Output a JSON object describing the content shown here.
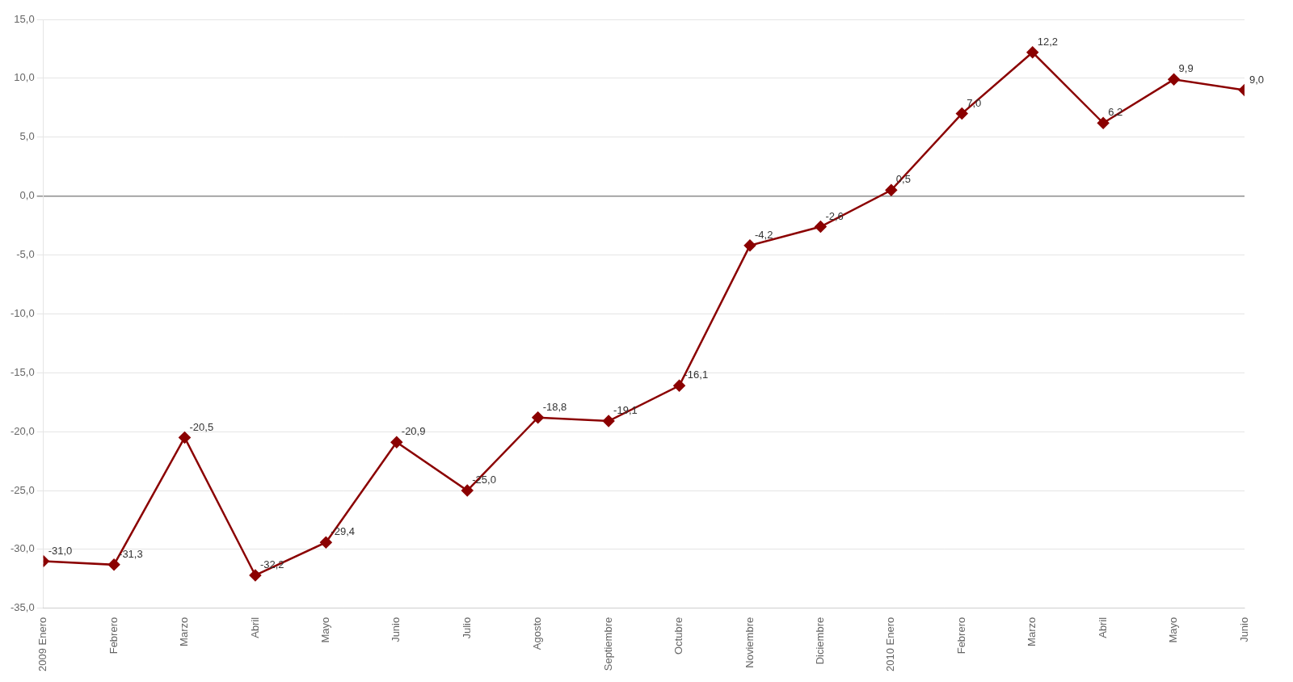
{
  "chart_data": {
    "type": "line",
    "categories": [
      "2009 Enero",
      "Febrero",
      "Marzo",
      "Abril",
      "Mayo",
      "Junio",
      "Julio",
      "Agosto",
      "Septiembre",
      "Octubre",
      "Noviembre",
      "Diciembre",
      "2010 Enero",
      "Febrero",
      "Marzo",
      "Abril",
      "Mayo",
      "Junio"
    ],
    "values": [
      -31.0,
      -31.3,
      -20.5,
      -32.2,
      -29.4,
      -20.9,
      -25.0,
      -18.8,
      -19.1,
      -16.1,
      -4.2,
      -2.6,
      0.5,
      7.0,
      12.2,
      6.2,
      9.9,
      9.0
    ],
    "value_labels": [
      "-31,0",
      "-31,3",
      "-20,5",
      "-32,2",
      "-29,4",
      "-20,9",
      "-25,0",
      "-18,8",
      "-19,1",
      "-16,1",
      "-4,2",
      "-2,6",
      "0,5",
      "7,0",
      "12,2",
      "6,2",
      "9,9",
      "9,0"
    ],
    "color": "#8B0000",
    "marker": "diamond",
    "ylim": [
      -35,
      15
    ],
    "yticks": [
      {
        "value": -35,
        "label": "-35,0"
      },
      {
        "value": -30,
        "label": "-30,0"
      },
      {
        "value": -25,
        "label": "-25,0"
      },
      {
        "value": -20,
        "label": "-20,0"
      },
      {
        "value": -15,
        "label": "-15,0"
      },
      {
        "value": -10,
        "label": "-10,0"
      },
      {
        "value": -5,
        "label": "-5,0"
      },
      {
        "value": 0,
        "label": "0,0"
      },
      {
        "value": 5,
        "label": "5,0"
      },
      {
        "value": 10,
        "label": "10,0"
      },
      {
        "value": 15,
        "label": "15,0"
      }
    ],
    "grid": true,
    "data_labels": true
  }
}
